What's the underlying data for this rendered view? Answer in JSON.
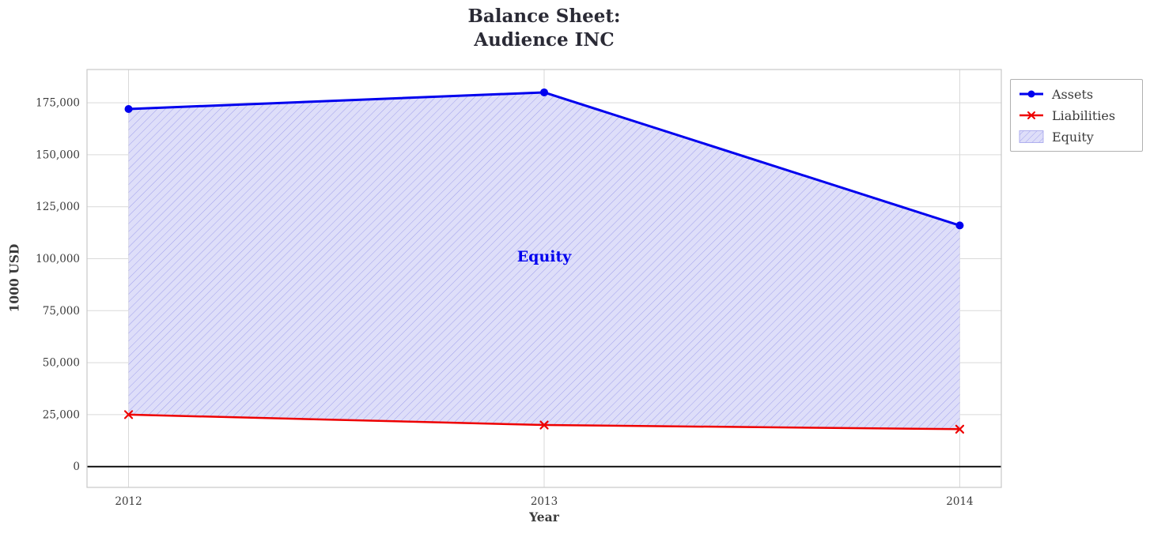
{
  "title": {
    "line1": "Balance Sheet:",
    "line2": "Audience INC"
  },
  "axes": {
    "x_label": "Year",
    "y_label": "1000 USD"
  },
  "legend": {
    "items": [
      {
        "label": "Assets"
      },
      {
        "label": "Liabilities"
      },
      {
        "label": "Equity"
      }
    ]
  },
  "colors": {
    "assets": "#0000ee",
    "liabilities": "#ee0000",
    "equity_fill": "#dedef9",
    "equity_hatch": "#a0a0ec",
    "grid": "#d9d9d9",
    "axis_text": "#3b3b3b",
    "title_text": "#2a2a35",
    "zero_line": "#000000",
    "plot_border": "#c8c8c8"
  },
  "chart_data": {
    "type": "line",
    "title": "Balance Sheet: Audience INC",
    "xlabel": "Year",
    "ylabel": "1000 USD",
    "x": [
      2012,
      2013,
      2014
    ],
    "series": [
      {
        "name": "Assets",
        "values": [
          172000,
          180000,
          116000
        ],
        "color": "#0000ee",
        "marker": "circle",
        "width": 3
      },
      {
        "name": "Liabilities",
        "values": [
          25000,
          20000,
          18000
        ],
        "color": "#ee0000",
        "marker": "x",
        "width": 2.5
      }
    ],
    "area": {
      "name": "Equity",
      "between": [
        "Assets",
        "Liabilities"
      ],
      "style": "hatched"
    },
    "annotations": [
      {
        "text": "Equity",
        "x": 2013,
        "y": 101000
      }
    ],
    "xticks": [
      2012,
      2013,
      2014
    ],
    "yticks": [
      0,
      25000,
      50000,
      75000,
      100000,
      125000,
      150000,
      175000
    ],
    "xlim": [
      2011.9,
      2014.1
    ],
    "ylim": [
      -10000,
      191000
    ],
    "grid": true,
    "legend_position": "outside-top-right"
  }
}
